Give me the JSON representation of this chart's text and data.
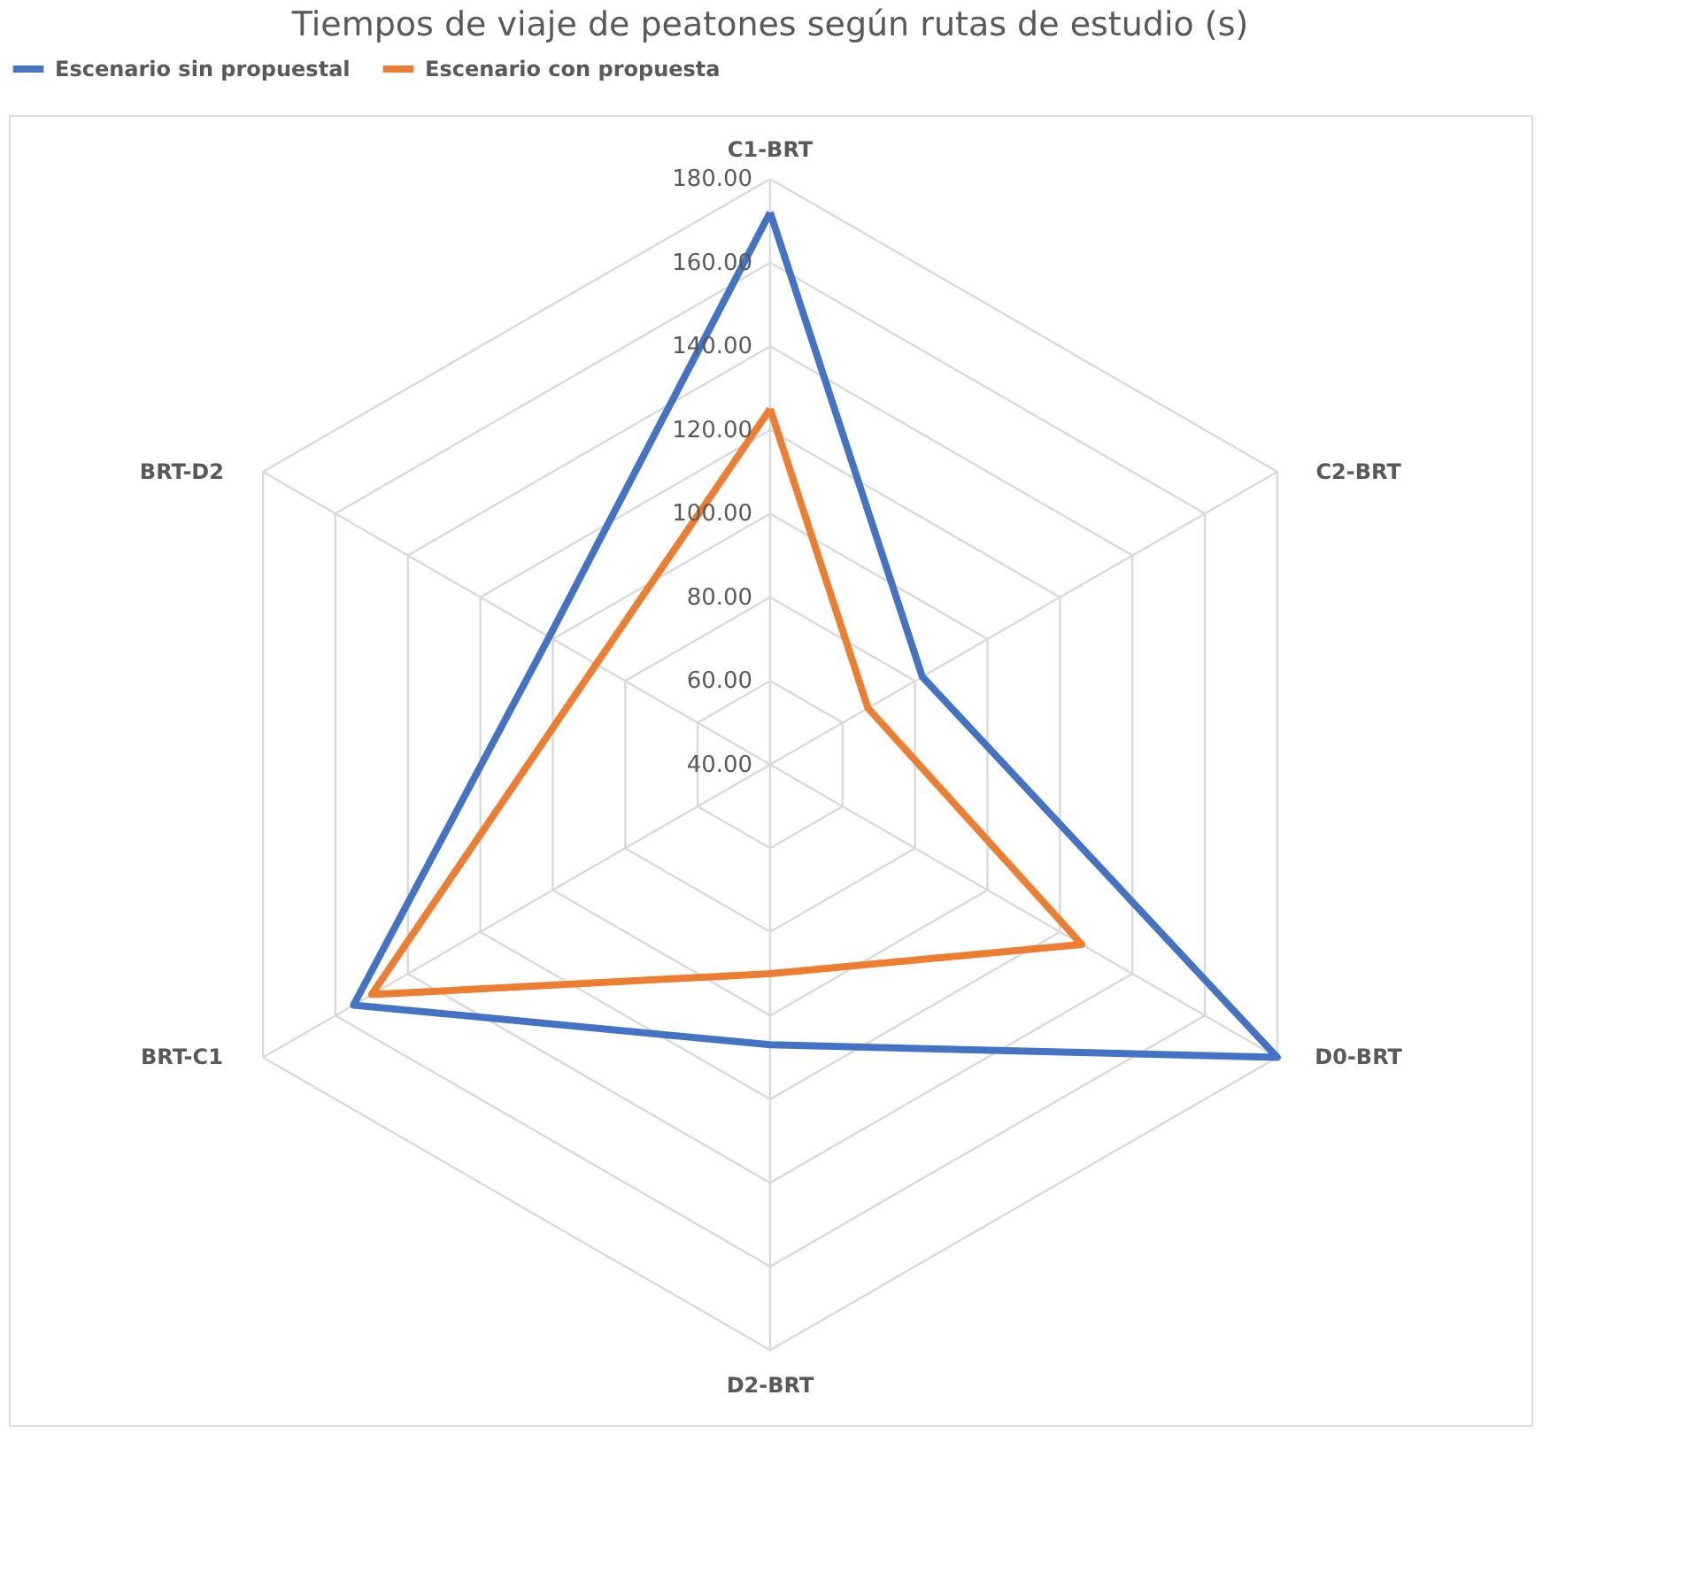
{
  "chart_data": {
    "type": "radar",
    "title": "Tiempos de viaje de peatones según rutas de estudio (s)",
    "categories": [
      "C1-BRT",
      "C2-BRT",
      "D0-BRT",
      "D2-BRT",
      "BRT-C1",
      "BRT-D2"
    ],
    "series": [
      {
        "name": "Escenario sin propuestal",
        "color": "#4472c4",
        "values": [
          172,
          82,
          180,
          107,
          155,
          101
        ]
      },
      {
        "name": "Escenario con propuesta",
        "color": "#ed7d31",
        "values": [
          125,
          67,
          126,
          90,
          150,
          88
        ]
      }
    ],
    "ylim": [
      40,
      180
    ],
    "yticks": [
      {
        "value": 40,
        "label": "40.00"
      },
      {
        "value": 60,
        "label": "60.00"
      },
      {
        "value": 80,
        "label": "80.00"
      },
      {
        "value": 100,
        "label": "100.00"
      },
      {
        "value": 120,
        "label": "120.00"
      },
      {
        "value": 140,
        "label": "140.00"
      },
      {
        "value": 160,
        "label": "160.00"
      },
      {
        "value": 180,
        "label": "180.00"
      }
    ],
    "grid": true,
    "legend": "top"
  }
}
